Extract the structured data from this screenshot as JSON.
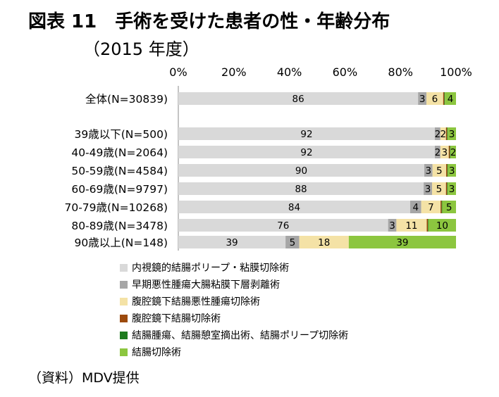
{
  "title": "図表 11　手術を受けた患者の性・年齢分布",
  "subtitle": "（2015 年度）",
  "source": "（資料）MDV提供",
  "chart_data": {
    "type": "bar",
    "orientation": "horizontal",
    "stacked": "100%",
    "title": "図表 11　手術を受けた患者の性・年齢分布",
    "subtitle": "（2015 年度）",
    "x_ticks": [
      "0%",
      "20%",
      "40%",
      "60%",
      "80%",
      "100%"
    ],
    "xlim": [
      0,
      100
    ],
    "legend_position": "bottom",
    "categories": [
      "全体(N=30839)",
      "39歳以下(N=500)",
      "40-49歳(N=2064)",
      "50-59歳(N=4584)",
      "60-69歳(N=9797)",
      "70-79歳(N=10268)",
      "80-89歳(N=3478)",
      "90歳以上(N=148)"
    ],
    "series": [
      {
        "name": "内視鏡的結腸ポリープ・粘膜切除術",
        "color": "#d9d9d9",
        "values": [
          86,
          92,
          92,
          90,
          88,
          84,
          76,
          39
        ]
      },
      {
        "name": "早期悪性腫瘍大腸粘膜下層剥離術",
        "color": "#a6a6a6",
        "values": [
          3,
          2,
          2,
          3,
          3,
          4,
          3,
          5
        ]
      },
      {
        "name": "腹腔鏡下結腸悪性腫瘍切除術",
        "color": "#f4e2a6",
        "values": [
          6,
          2,
          3,
          5,
          5,
          7,
          11,
          18
        ]
      },
      {
        "name": "腹腔鏡下結腸切除術",
        "color": "#9c4a0c",
        "values": [
          0.4,
          0.4,
          0.4,
          0.4,
          0.4,
          0.4,
          0.4,
          0
        ]
      },
      {
        "name": "結腸腫瘍、結腸憩室摘出術、結腸ポリープ切除術",
        "color": "#1e7b1e",
        "values": [
          0.2,
          0.2,
          0.2,
          0.2,
          0.2,
          0.2,
          0.2,
          0
        ]
      },
      {
        "name": "結腸切除術",
        "color": "#8cc63f",
        "values": [
          4,
          3,
          2,
          3,
          3,
          5,
          10,
          39
        ]
      }
    ],
    "data_labels": [
      [
        "86",
        "3",
        "6",
        "",
        "",
        "4"
      ],
      [
        "92",
        "2",
        "2",
        "",
        "",
        "3"
      ],
      [
        "92",
        "2",
        "3",
        "",
        "",
        "2"
      ],
      [
        "90",
        "3",
        "5",
        "",
        "",
        "3"
      ],
      [
        "88",
        "3",
        "5",
        "",
        "",
        "3"
      ],
      [
        "84",
        "4",
        "7",
        "",
        "",
        "5"
      ],
      [
        "76",
        "3",
        "11",
        "",
        "",
        "10"
      ],
      [
        "39",
        "5",
        "18",
        "",
        "",
        "39"
      ]
    ]
  }
}
